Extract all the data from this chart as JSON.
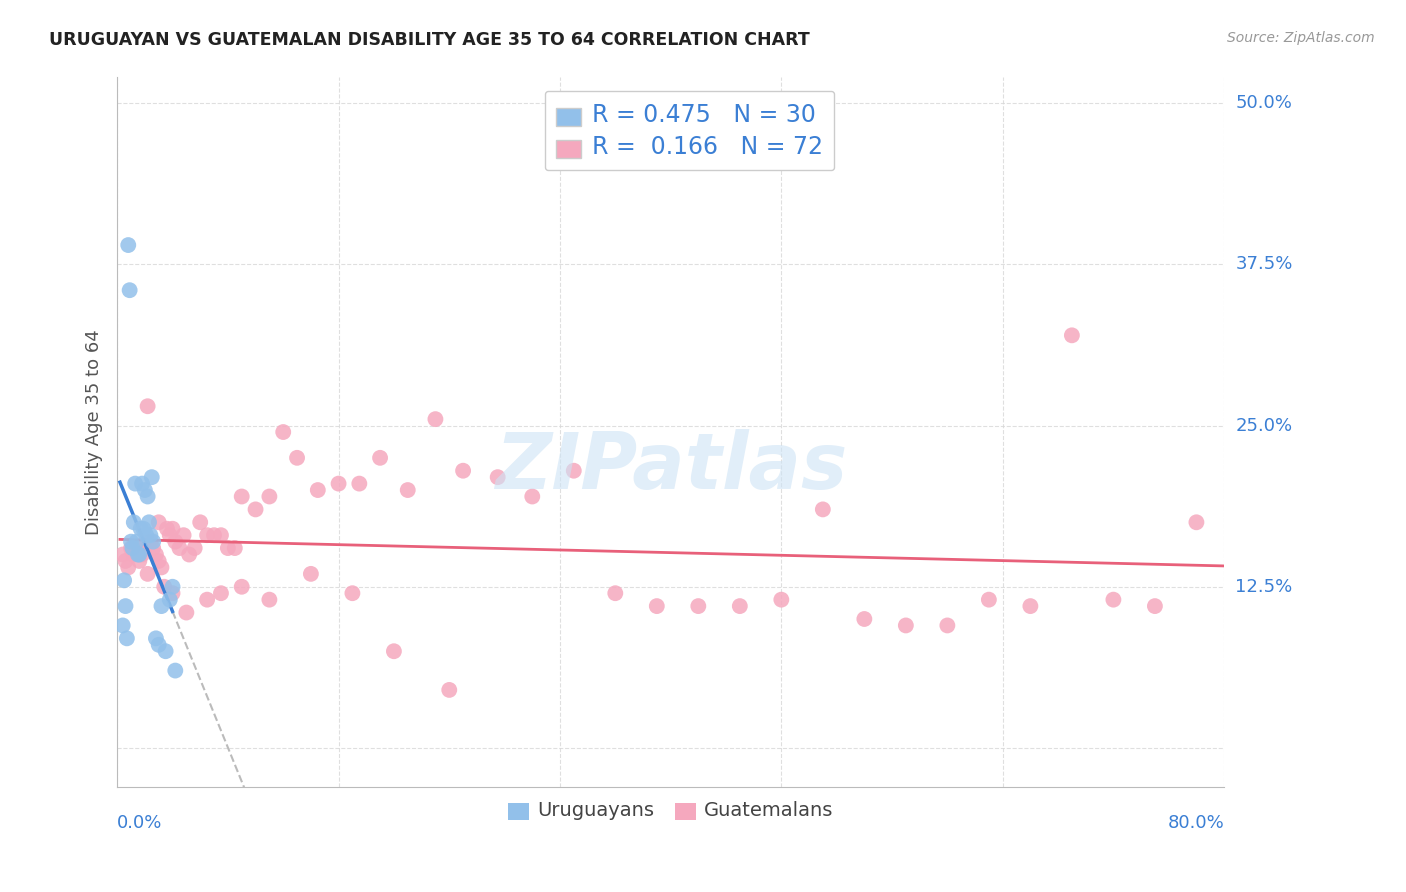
{
  "title": "URUGUAYAN VS GUATEMALAN DISABILITY AGE 35 TO 64 CORRELATION CHART",
  "source": "Source: ZipAtlas.com",
  "ylabel": "Disability Age 35 to 64",
  "xlim": [
    0.0,
    0.8
  ],
  "ylim": [
    -0.03,
    0.52
  ],
  "blue_color": "#92c0ea",
  "pink_color": "#f5a8be",
  "blue_line_color": "#3b7fd4",
  "pink_line_color": "#e8607a",
  "dash_color": "#bbbbbb",
  "watermark_color": "#cde3f5",
  "grid_color": "#d8d8d8",
  "background_color": "#ffffff",
  "title_color": "#222222",
  "source_color": "#999999",
  "axis_label_color": "#3b7fd4",
  "ylabel_color": "#555555",
  "legend_text_color": "#3b7fd4",
  "bottom_legend_color": "#444444",
  "legend_blue_R": "R = 0.475",
  "legend_blue_N": "N = 30",
  "legend_pink_R": "R =  0.166",
  "legend_pink_N": "N = 72",
  "ytick_vals": [
    0.125,
    0.25,
    0.375,
    0.5
  ],
  "ytick_labels": [
    "12.5%",
    "25.0%",
    "37.5%",
    "50.0%"
  ],
  "blue_scatter_x": [
    0.004,
    0.005,
    0.006,
    0.007,
    0.008,
    0.009,
    0.01,
    0.011,
    0.012,
    0.013,
    0.014,
    0.015,
    0.016,
    0.017,
    0.018,
    0.019,
    0.02,
    0.021,
    0.022,
    0.023,
    0.024,
    0.025,
    0.026,
    0.028,
    0.03,
    0.032,
    0.035,
    0.038,
    0.04,
    0.042
  ],
  "blue_scatter_y": [
    0.095,
    0.13,
    0.11,
    0.085,
    0.39,
    0.355,
    0.16,
    0.155,
    0.175,
    0.205,
    0.16,
    0.15,
    0.15,
    0.17,
    0.205,
    0.17,
    0.2,
    0.165,
    0.195,
    0.175,
    0.165,
    0.21,
    0.16,
    0.085,
    0.08,
    0.11,
    0.075,
    0.115,
    0.125,
    0.06
  ],
  "pink_scatter_x": [
    0.004,
    0.006,
    0.008,
    0.01,
    0.012,
    0.014,
    0.016,
    0.018,
    0.02,
    0.022,
    0.024,
    0.026,
    0.028,
    0.03,
    0.032,
    0.034,
    0.036,
    0.038,
    0.04,
    0.042,
    0.045,
    0.048,
    0.052,
    0.056,
    0.06,
    0.065,
    0.07,
    0.075,
    0.08,
    0.085,
    0.09,
    0.1,
    0.11,
    0.12,
    0.13,
    0.145,
    0.16,
    0.175,
    0.19,
    0.21,
    0.23,
    0.25,
    0.275,
    0.3,
    0.33,
    0.36,
    0.39,
    0.42,
    0.45,
    0.48,
    0.51,
    0.54,
    0.57,
    0.6,
    0.63,
    0.66,
    0.69,
    0.72,
    0.75,
    0.78,
    0.022,
    0.03,
    0.04,
    0.05,
    0.065,
    0.075,
    0.09,
    0.11,
    0.14,
    0.17,
    0.2,
    0.24
  ],
  "pink_scatter_y": [
    0.15,
    0.145,
    0.14,
    0.155,
    0.15,
    0.155,
    0.145,
    0.15,
    0.155,
    0.135,
    0.16,
    0.155,
    0.15,
    0.145,
    0.14,
    0.125,
    0.17,
    0.165,
    0.17,
    0.16,
    0.155,
    0.165,
    0.15,
    0.155,
    0.175,
    0.165,
    0.165,
    0.165,
    0.155,
    0.155,
    0.195,
    0.185,
    0.195,
    0.245,
    0.225,
    0.2,
    0.205,
    0.205,
    0.225,
    0.2,
    0.255,
    0.215,
    0.21,
    0.195,
    0.215,
    0.12,
    0.11,
    0.11,
    0.11,
    0.115,
    0.185,
    0.1,
    0.095,
    0.095,
    0.115,
    0.11,
    0.32,
    0.115,
    0.11,
    0.175,
    0.265,
    0.175,
    0.12,
    0.105,
    0.115,
    0.12,
    0.125,
    0.115,
    0.135,
    0.12,
    0.075,
    0.045
  ]
}
